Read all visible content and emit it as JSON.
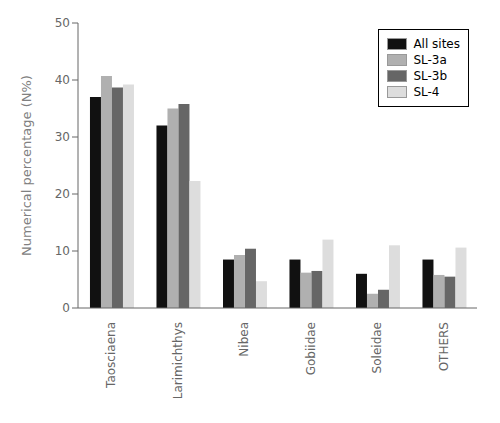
{
  "chart_data": {
    "type": "bar",
    "categories": [
      "Taosciaena",
      "Larimichthys",
      "Nibea",
      "Gobiidae",
      "Soleidae",
      "OTHERS"
    ],
    "series": [
      {
        "name": "All sites",
        "color": "#111111",
        "values": [
          37.0,
          32.0,
          8.5,
          8.5,
          6.0,
          8.5
        ]
      },
      {
        "name": "SL-3a",
        "color": "#b0b0b0",
        "values": [
          40.7,
          35.0,
          9.3,
          6.2,
          2.5,
          5.8
        ]
      },
      {
        "name": "SL-3b",
        "color": "#666666",
        "values": [
          38.7,
          35.8,
          10.4,
          6.5,
          3.2,
          5.5
        ]
      },
      {
        "name": "SL-4",
        "color": "#dddddd",
        "values": [
          39.2,
          22.3,
          4.7,
          12.0,
          11.0,
          10.6
        ]
      }
    ],
    "ylabel": "Numerical percentage (N%)",
    "ylim": [
      0,
      50
    ],
    "yticks": [
      0,
      10,
      20,
      30,
      40,
      50
    ],
    "legend": "upper right",
    "grid": false
  }
}
